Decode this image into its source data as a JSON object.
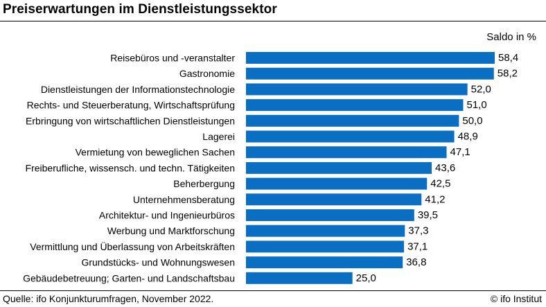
{
  "header": {
    "title": "Preiserwartungen im Dienstleistungssektor"
  },
  "unit_label": "Saldo in %",
  "footer": {
    "source": "Quelle: ifo Konjunkturumfragen, November 2022.",
    "credit": "© ifo Institut"
  },
  "colors": {
    "bar": "#0a6fc2"
  },
  "chart_data": {
    "type": "bar",
    "orientation": "horizontal",
    "title": "Preiserwartungen im Dienstleistungssektor",
    "xlabel": "Saldo in %",
    "ylabel": "",
    "categories": [
      "Reisebüros und -veranstalter",
      "Gastronomie",
      "Dienstleistungen der Informationstechnologie",
      "Rechts- und Steuerberatung, Wirtschaftsprüfung",
      "Erbringung von wirtschaftlichen Dienstleistungen",
      "Lagerei",
      "Vermietung von beweglichen Sachen",
      "Freiberufliche, wissensch. und techn. Tätigkeiten",
      "Beherbergung",
      "Unternehmensberatung",
      "Architektur- und Ingenieurbüros",
      "Werbung und Marktforschung",
      "Vermittlung und Überlassung von Arbeitskräften",
      "Grundstücks- und Wohnungswesen",
      "Gebäudebetreuung; Garten- und Landschaftsbau"
    ],
    "values": [
      58.4,
      58.2,
      52.0,
      51.0,
      50.0,
      48.9,
      47.1,
      43.6,
      42.5,
      41.2,
      39.5,
      37.3,
      37.1,
      36.8,
      25.0
    ],
    "value_labels": [
      "58,4",
      "58,2",
      "52,0",
      "51,0",
      "50,0",
      "48,9",
      "47,1",
      "43,6",
      "42,5",
      "41,2",
      "39,5",
      "37,3",
      "37,1",
      "36,8",
      "25,0"
    ],
    "xlim": [
      0,
      60
    ],
    "grid": false,
    "legend": "none"
  }
}
